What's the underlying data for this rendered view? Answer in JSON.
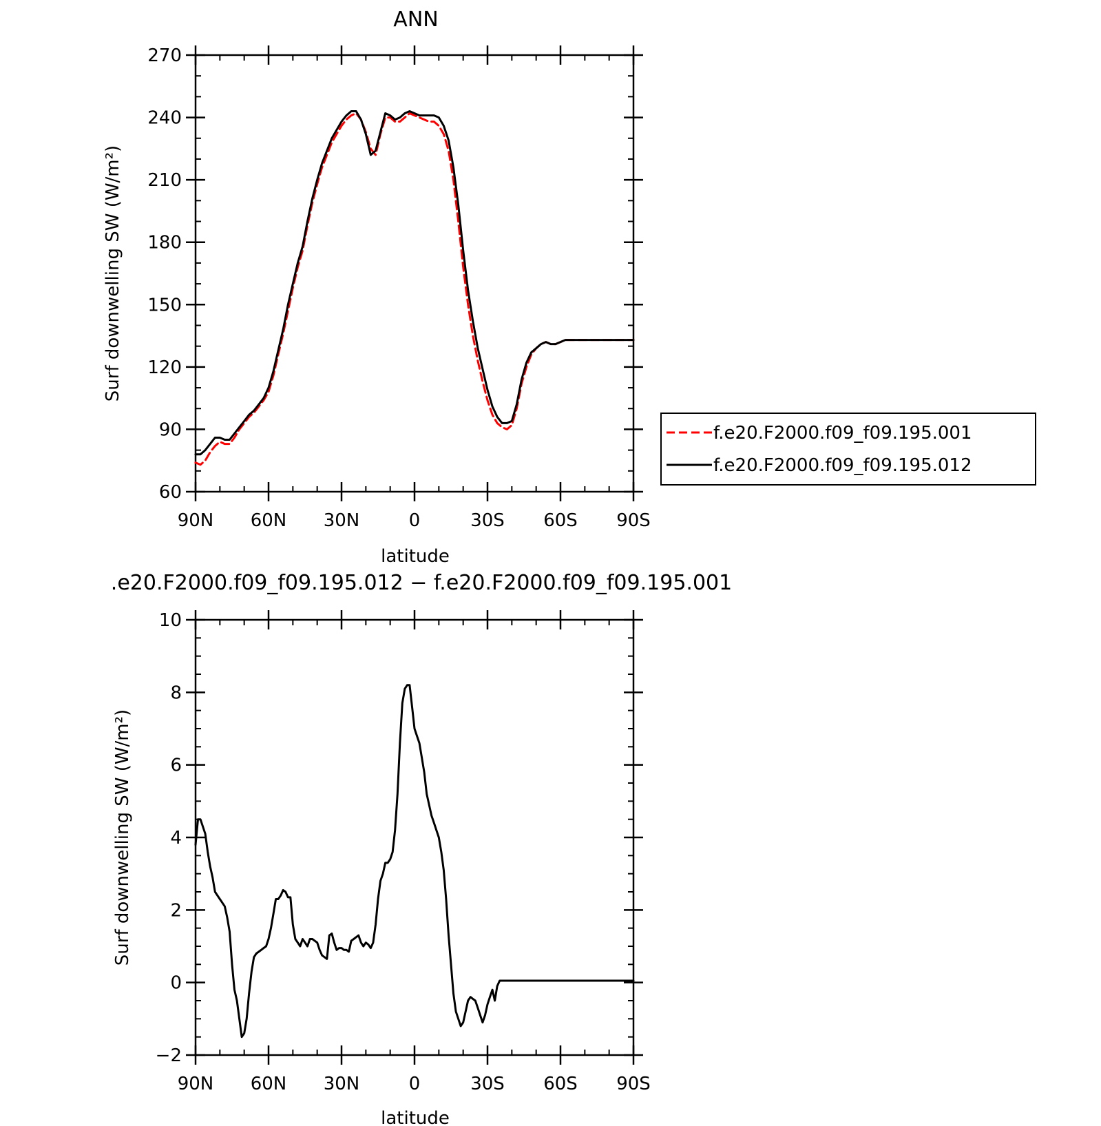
{
  "chart_data": [
    {
      "type": "line",
      "title": "ANN",
      "xlabel": "latitude",
      "ylabel": "Surf downwelling SW (W/m²)",
      "xlim": [
        90,
        -90
      ],
      "ylim": [
        60,
        270
      ],
      "x_ticks": [
        {
          "value": 90,
          "label": "90N"
        },
        {
          "value": 60,
          "label": "60N"
        },
        {
          "value": 30,
          "label": "30N"
        },
        {
          "value": 0,
          "label": "0"
        },
        {
          "value": -30,
          "label": "30S"
        },
        {
          "value": -60,
          "label": "60S"
        },
        {
          "value": -90,
          "label": "90S"
        }
      ],
      "y_ticks": [
        60,
        90,
        120,
        150,
        180,
        210,
        240,
        270
      ],
      "y_minor_step": 10,
      "x_minor_step": 10,
      "legend": "right",
      "series": [
        {
          "name": "f.e20.F2000.f09_f09.195.001",
          "color": "#ff0000",
          "dash": true,
          "x": [
            90,
            88,
            86,
            84,
            82,
            80,
            78,
            76,
            74,
            72,
            70,
            68,
            66,
            64,
            62,
            60,
            58,
            56,
            54,
            52,
            50,
            48,
            46,
            44,
            42,
            40,
            38,
            36,
            34,
            32,
            30,
            28,
            26,
            24,
            22,
            20,
            18,
            16,
            14,
            12,
            10,
            8,
            6,
            4,
            2,
            0,
            -2,
            -4,
            -6,
            -8,
            -10,
            -12,
            -14,
            -16,
            -18,
            -20,
            -22,
            -24,
            -26,
            -28,
            -30,
            -32,
            -34,
            -36,
            -38,
            -40,
            -42,
            -44,
            -46,
            -48,
            -50,
            -52,
            -54,
            -56,
            -58,
            -60,
            -62,
            -64,
            -66,
            -68,
            -70,
            -72,
            -74,
            -76,
            -78,
            -80,
            -82,
            -84,
            -86,
            -88,
            -90
          ],
          "y": [
            74,
            73,
            75,
            79,
            82,
            84,
            83,
            83,
            86,
            90,
            93,
            96,
            98,
            101,
            104,
            108,
            116,
            126,
            136,
            147,
            158,
            168,
            176,
            188,
            199,
            208,
            216,
            222,
            228,
            232,
            236,
            239,
            241,
            242,
            239,
            233,
            225,
            222,
            232,
            240,
            240,
            238,
            238,
            240,
            242,
            241,
            240,
            239,
            238,
            238,
            236,
            232,
            224,
            210,
            190,
            168,
            150,
            135,
            123,
            113,
            104,
            97,
            93,
            91,
            90,
            92,
            100,
            112,
            120,
            126,
            129,
            131,
            132,
            131,
            131,
            132,
            133,
            133,
            133,
            133,
            133,
            133,
            133,
            133,
            133,
            133,
            133,
            133,
            133,
            133,
            133
          ]
        },
        {
          "name": "f.e20.F2000.f09_f09.195.012",
          "color": "#000000",
          "dash": false,
          "x": [
            90,
            88,
            86,
            84,
            82,
            80,
            78,
            76,
            74,
            72,
            70,
            68,
            66,
            64,
            62,
            60,
            58,
            56,
            54,
            52,
            50,
            48,
            46,
            44,
            42,
            40,
            38,
            36,
            34,
            32,
            30,
            28,
            26,
            24,
            22,
            20,
            18,
            16,
            14,
            12,
            10,
            8,
            6,
            4,
            2,
            0,
            -2,
            -4,
            -6,
            -8,
            -10,
            -12,
            -14,
            -16,
            -18,
            -20,
            -22,
            -24,
            -26,
            -28,
            -30,
            -32,
            -34,
            -36,
            -38,
            -40,
            -42,
            -44,
            -46,
            -48,
            -50,
            -52,
            -54,
            -56,
            -58,
            -60,
            -62,
            -64,
            -66,
            -68,
            -70,
            -72,
            -74,
            -76,
            -78,
            -80,
            -82,
            -84,
            -86,
            -88,
            -90
          ],
          "y": [
            78,
            78,
            80,
            83,
            86,
            86,
            85,
            85,
            88,
            91,
            94,
            97,
            99,
            102,
            105,
            110,
            118,
            128,
            138,
            150,
            160,
            170,
            178,
            190,
            201,
            210,
            218,
            224,
            230,
            234,
            238,
            241,
            243,
            243,
            239,
            232,
            222,
            224,
            233,
            242,
            241,
            239,
            240,
            242,
            243,
            242,
            241,
            241,
            241,
            241,
            240,
            236,
            229,
            216,
            198,
            176,
            157,
            142,
            129,
            119,
            109,
            101,
            96,
            93,
            93,
            94,
            102,
            114,
            122,
            127,
            129,
            131,
            132,
            131,
            131,
            132,
            133,
            133,
            133,
            133,
            133,
            133,
            133,
            133,
            133,
            133,
            133,
            133,
            133,
            133,
            133
          ]
        }
      ]
    },
    {
      "type": "line",
      "title": ".e20.F2000.f09_f09.195.012 − f.e20.F2000.f09_f09.195.001",
      "xlabel": "latitude",
      "ylabel": "Surf downwelling SW (W/m²)",
      "xlim": [
        90,
        -90
      ],
      "ylim": [
        -2,
        10
      ],
      "x_ticks": [
        {
          "value": 90,
          "label": "90N"
        },
        {
          "value": 60,
          "label": "60N"
        },
        {
          "value": 30,
          "label": "30N"
        },
        {
          "value": 0,
          "label": "0"
        },
        {
          "value": -30,
          "label": "30S"
        },
        {
          "value": -60,
          "label": "60S"
        },
        {
          "value": -90,
          "label": "90S"
        }
      ],
      "y_ticks": [
        -2,
        0,
        2,
        4,
        6,
        8,
        10
      ],
      "y_tick_labels": [
        "−2",
        "0",
        "2",
        "4",
        "6",
        "8",
        "10"
      ],
      "y_minor_step": 0.5,
      "x_minor_step": 10,
      "series": [
        {
          "color": "#000000",
          "dash": false,
          "x": [
            90,
            89,
            88,
            87,
            86,
            85,
            84,
            83,
            82,
            81,
            80,
            79,
            78,
            77,
            76,
            75,
            74,
            73,
            72,
            71,
            70,
            69,
            68,
            67,
            66,
            65,
            64,
            63,
            62,
            61,
            60,
            59,
            58,
            57,
            56,
            55,
            54,
            53,
            52,
            51,
            50,
            49,
            48,
            47,
            46,
            45,
            44,
            43,
            42,
            41,
            40,
            39,
            38,
            37,
            36,
            35,
            34,
            33,
            32,
            31,
            30,
            29,
            28,
            27,
            26,
            25,
            24,
            23,
            22,
            21,
            20,
            19,
            18,
            17,
            16,
            15,
            14,
            13,
            12,
            11,
            10,
            9,
            8,
            7,
            6,
            5,
            4,
            3,
            2,
            1,
            0,
            -1,
            -2,
            -3,
            -4,
            -5,
            -6,
            -7,
            -8,
            -9,
            -10,
            -11,
            -12,
            -13,
            -14,
            -15,
            -16,
            -17,
            -18,
            -19,
            -20,
            -21,
            -22,
            -23,
            -24,
            -25,
            -26,
            -27,
            -28,
            -29,
            -30,
            -31,
            -32,
            -33,
            -34,
            -35,
            -36,
            -37,
            -38,
            -39,
            -40,
            -41,
            -42,
            -43,
            -44,
            -45,
            -46,
            -47,
            -48,
            -49,
            -50,
            -51,
            -52,
            -53,
            -54,
            -55,
            -56,
            -57,
            -58,
            -59,
            -60,
            -61,
            -62,
            -63,
            -64,
            -65,
            -66,
            -67,
            -68,
            -69,
            -70,
            -71,
            -72,
            -73,
            -74,
            -75,
            -76,
            -77,
            -78,
            -79,
            -80,
            -81,
            -82,
            -83,
            -84,
            -85,
            -86,
            -87,
            -88,
            -89,
            -90
          ],
          "y": [
            3.8,
            4.5,
            4.5,
            4.3,
            4.1,
            3.6,
            3.2,
            2.9,
            2.5,
            2.4,
            2.3,
            2.2,
            2.1,
            1.8,
            1.4,
            0.5,
            -0.2,
            -0.5,
            -1.0,
            -1.5,
            -1.4,
            -1.0,
            -0.3,
            0.3,
            0.7,
            0.8,
            0.85,
            0.9,
            0.95,
            1.0,
            1.2,
            1.5,
            1.9,
            2.3,
            2.3,
            2.4,
            2.55,
            2.5,
            2.35,
            2.35,
            1.6,
            1.2,
            1.1,
            1.0,
            1.2,
            1.1,
            1.0,
            1.2,
            1.2,
            1.15,
            1.1,
            0.9,
            0.75,
            0.7,
            0.65,
            1.3,
            1.35,
            1.1,
            0.9,
            0.95,
            0.95,
            0.9,
            0.9,
            0.85,
            1.15,
            1.2,
            1.25,
            1.3,
            1.1,
            1.0,
            1.1,
            1.05,
            0.95,
            1.1,
            1.6,
            2.3,
            2.8,
            3.0,
            3.3,
            3.3,
            3.4,
            3.6,
            4.2,
            5.2,
            6.6,
            7.7,
            8.1,
            8.2,
            8.2,
            7.6,
            7.0,
            6.8,
            6.6,
            6.2,
            5.8,
            5.2,
            4.9,
            4.6,
            4.4,
            4.2,
            4.0,
            3.6,
            3.1,
            2.3,
            1.3,
            0.5,
            -0.3,
            -0.8,
            -1.0,
            -1.2,
            -1.1,
            -0.8,
            -0.5,
            -0.4,
            -0.45,
            -0.5,
            -0.7,
            -0.9,
            -1.1,
            -0.9,
            -0.6,
            -0.4,
            -0.2,
            -0.5,
            -0.1,
            0.05,
            0.05,
            0.05,
            0.05,
            0.05,
            0.05,
            0.05,
            0.05,
            0.05,
            0.05,
            0.05,
            0.05,
            0.05,
            0.05,
            0.05,
            0.05,
            0.05,
            0.05,
            0.05,
            0.05,
            0.05,
            0.05,
            0.05,
            0.05,
            0.05,
            0.05,
            0.05,
            0.05,
            0.05,
            0.05,
            0.05,
            0.05,
            0.05,
            0.05,
            0.05,
            0.05,
            0.05,
            0.05,
            0.05,
            0.05,
            0.05,
            0.05,
            0.05,
            0.05,
            0.05,
            0.05,
            0.05,
            0.05,
            0.05,
            0.05,
            0.05,
            0.05,
            0.05,
            0.05,
            0.05,
            0.05
          ]
        }
      ]
    }
  ]
}
